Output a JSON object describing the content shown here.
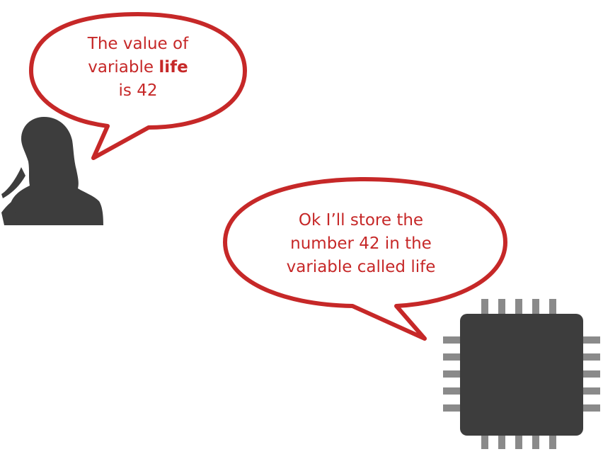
{
  "person_bubble": {
    "line1": "The value of",
    "line2_prefix": "variable ",
    "line2_bold": "life",
    "line3": "is 42"
  },
  "chip_bubble": {
    "line1": "Ok I’ll store the",
    "line2": "number 42 in the",
    "line3": "variable called life"
  },
  "icons": {
    "person": "woman-silhouette-icon",
    "chip": "microchip-icon"
  },
  "colors": {
    "bubble_outline": "#c62828",
    "text": "#c62828",
    "silhouette": "#3d3d3d",
    "chip_body": "#3d3d3d",
    "chip_pins": "#8a8a8a"
  }
}
